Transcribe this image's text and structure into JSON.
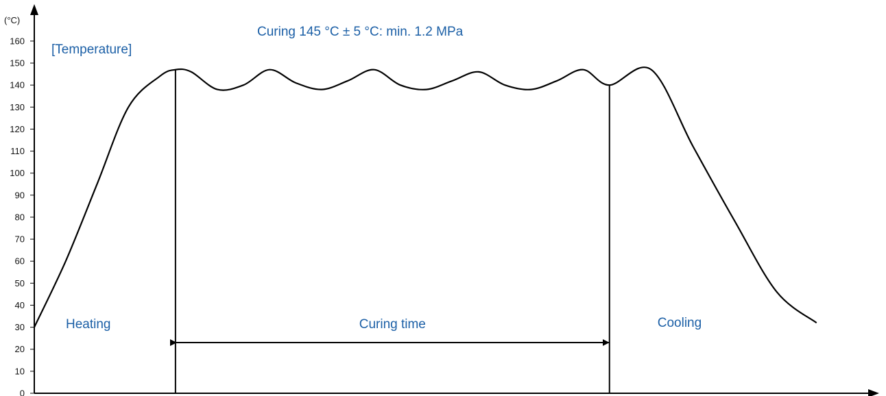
{
  "chart_data": {
    "type": "line",
    "title": "Curing 145 °C ± 5 °C: min. 1.2 MPa",
    "ylabel": "[Temperature]",
    "yunit": "(°C)",
    "xlabel": "",
    "ylim": [
      0,
      165
    ],
    "yticks": [
      0,
      10,
      20,
      30,
      40,
      50,
      60,
      70,
      80,
      90,
      100,
      110,
      120,
      130,
      140,
      150,
      160
    ],
    "grid": false,
    "series": [
      {
        "x": [
          0,
          3,
          6,
          9,
          12,
          13.5,
          15,
          17.5,
          20,
          22.5,
          25,
          27.5,
          30,
          32.5,
          35,
          37.5,
          40,
          42.5,
          45,
          47.5,
          50,
          52.5,
          55,
          59,
          63,
          67,
          71,
          74.8
        ],
        "y": [
          30,
          60,
          95,
          130,
          144,
          147,
          146,
          138,
          140,
          147,
          141,
          138,
          142,
          147,
          140,
          138,
          142,
          146,
          140,
          138,
          142,
          147,
          140,
          147,
          112,
          78,
          46,
          32
        ]
      }
    ],
    "phases": [
      {
        "label": "Heating",
        "start": 0,
        "end": 13.5
      },
      {
        "label": "Curing time",
        "start": 13.5,
        "end": 55
      },
      {
        "label": "Cooling",
        "start": 55,
        "end": 74.8
      }
    ],
    "colors": {
      "text": "#1b5fa6",
      "line": "#000000"
    }
  }
}
